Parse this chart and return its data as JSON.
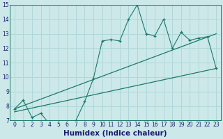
{
  "xlabel": "Humidex (Indice chaleur)",
  "xlim": [
    -0.5,
    23.5
  ],
  "ylim": [
    7,
    15
  ],
  "xticks": [
    0,
    1,
    2,
    3,
    4,
    5,
    6,
    7,
    8,
    9,
    10,
    11,
    12,
    13,
    14,
    15,
    16,
    17,
    18,
    19,
    20,
    21,
    22,
    23
  ],
  "yticks": [
    7,
    8,
    9,
    10,
    11,
    12,
    13,
    14,
    15
  ],
  "background_color": "#cce8e8",
  "grid_color": "#b0d8d8",
  "line_color": "#1a7a6a",
  "data_x": [
    0,
    1,
    2,
    3,
    4,
    5,
    6,
    7,
    8,
    9,
    10,
    11,
    12,
    13,
    14,
    15,
    16,
    17,
    18,
    19,
    20,
    21,
    22,
    23
  ],
  "data_y": [
    7.8,
    8.4,
    7.2,
    7.5,
    6.75,
    6.75,
    6.75,
    7.0,
    8.3,
    9.9,
    12.5,
    12.6,
    12.5,
    14.0,
    15.0,
    13.0,
    12.85,
    14.0,
    12.0,
    13.1,
    12.55,
    12.7,
    12.8,
    10.6
  ],
  "trend1_x": [
    0,
    23
  ],
  "trend1_y": [
    7.8,
    13.0
  ],
  "trend2_x": [
    0,
    23
  ],
  "trend2_y": [
    7.6,
    10.6
  ],
  "tick_fontsize": 5.5,
  "xlabel_fontsize": 7.5
}
